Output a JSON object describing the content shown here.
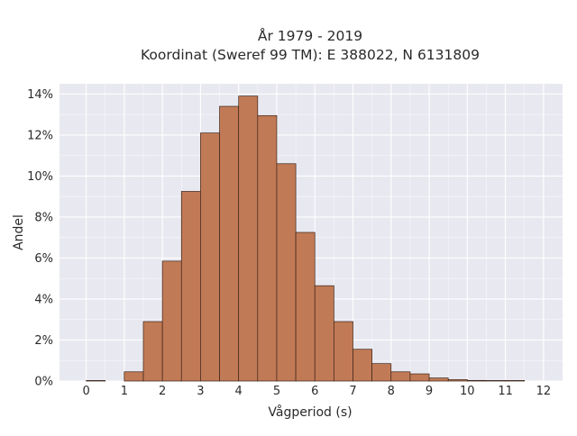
{
  "chart_data": {
    "type": "bar",
    "title": "År 1979 - 2019",
    "subtitle": "Koordinat (Sweref 99 TM): E 388022, N 6131809",
    "xlabel": "Vågperiod (s)",
    "ylabel": "Andel",
    "xlim": [
      -0.7,
      12.5
    ],
    "ylim": [
      0,
      14.5
    ],
    "x_ticks": [
      0,
      1,
      2,
      3,
      4,
      5,
      6,
      7,
      8,
      9,
      10,
      11,
      12
    ],
    "y_ticks": [
      0,
      2,
      4,
      6,
      8,
      10,
      12,
      14
    ],
    "y_tick_labels": [
      "0%",
      "2%",
      "4%",
      "6%",
      "8%",
      "10%",
      "12%",
      "14%"
    ],
    "bin_width": 0.5,
    "bins": [
      {
        "x0": 0.0,
        "value": 0.02
      },
      {
        "x0": 1.0,
        "value": 0.45
      },
      {
        "x0": 1.5,
        "value": 2.9
      },
      {
        "x0": 2.0,
        "value": 5.85
      },
      {
        "x0": 2.5,
        "value": 9.25
      },
      {
        "x0": 3.0,
        "value": 12.1
      },
      {
        "x0": 3.5,
        "value": 13.4
      },
      {
        "x0": 4.0,
        "value": 13.9
      },
      {
        "x0": 4.5,
        "value": 12.95
      },
      {
        "x0": 5.0,
        "value": 10.6
      },
      {
        "x0": 5.5,
        "value": 7.25
      },
      {
        "x0": 6.0,
        "value": 4.65
      },
      {
        "x0": 6.5,
        "value": 2.9
      },
      {
        "x0": 7.0,
        "value": 1.55
      },
      {
        "x0": 7.5,
        "value": 0.85
      },
      {
        "x0": 8.0,
        "value": 0.45
      },
      {
        "x0": 8.5,
        "value": 0.35
      },
      {
        "x0": 9.0,
        "value": 0.15
      },
      {
        "x0": 9.5,
        "value": 0.07
      },
      {
        "x0": 10.0,
        "value": 0.03
      },
      {
        "x0": 10.5,
        "value": 0.02
      },
      {
        "x0": 11.0,
        "value": 0.01
      }
    ],
    "grid": true,
    "colors": {
      "bar_fill": "#c17a56",
      "bar_edge": "#3b2418",
      "plot_background": "#e8e8f0",
      "grid": "#ffffff"
    }
  }
}
